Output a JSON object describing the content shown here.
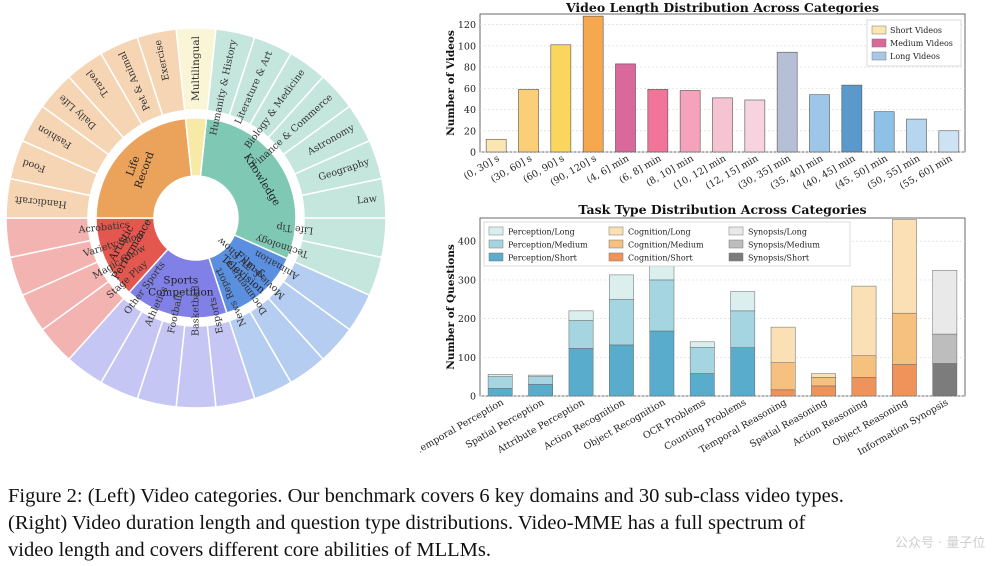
{
  "sunburst": {
    "inner": [
      {
        "label": "Knowledge",
        "color": "#7fc8b4",
        "items": [
          "Humanity & History",
          "Literature & Art",
          "Biology & Medicine",
          "Finance & Commerce",
          "Astronomy",
          "Geography",
          "Law",
          "Life Tip",
          "Technology"
        ]
      },
      {
        "label": "Film & Television",
        "color": "#5b8fe0",
        "items": [
          "Animation",
          "Movie & TV Show",
          "Documentary",
          "News Report"
        ]
      },
      {
        "label": "Sports Competition",
        "color": "#8080e6",
        "items": [
          "Esports",
          "Basketball",
          "Football",
          "Athletics",
          "Other Sports"
        ]
      },
      {
        "label": "Artistic Performance",
        "color": "#e4574f",
        "items": [
          "Stage Play",
          "Magic Show",
          "Variety Show",
          "Acrobatics"
        ]
      },
      {
        "label": "Life Record",
        "color": "#eba25a",
        "items": [
          "Handicraft",
          "Food",
          "Fashion",
          "Daily Life",
          "Travel",
          "Pet & Animal",
          "Exercise"
        ]
      },
      {
        "label": "Multilingual",
        "color": "#f7e9a6",
        "items": [
          "Multilingual"
        ]
      }
    ]
  },
  "chart_data": [
    {
      "type": "bar",
      "title": "Video Length Distribution Across Categories",
      "xlabel": "",
      "ylabel": "Number of Videos",
      "ylim": [
        0,
        130
      ],
      "yticks": [
        0,
        20,
        40,
        60,
        80,
        100,
        120
      ],
      "categories": [
        "(0, 30] s",
        "(30, 60] s",
        "(60, 90] s",
        "(90, 120] s",
        "(4, 6] min",
        "(6, 8] min",
        "(8, 10] min",
        "(10, 12] min",
        "(12, 15] min",
        "(30, 35] min",
        "(35, 40] min",
        "(40, 45] min",
        "(45, 50] min",
        "(50, 55] min",
        "(55, 60] min"
      ],
      "values": [
        12,
        59,
        101,
        128,
        83,
        59,
        58,
        51,
        49,
        94,
        54,
        63,
        38,
        31,
        20
      ],
      "colors": [
        "#fbe6b2",
        "#fbcf78",
        "#fbd65e",
        "#f5a84d",
        "#d9699b",
        "#f2749b",
        "#f5a3bd",
        "#f6c3d3",
        "#f6d3de",
        "#b5bfd6",
        "#9ec6e8",
        "#5b98cc",
        "#8dc1e6",
        "#b6d5ee",
        "#cde2f3"
      ],
      "legend": {
        "placement": "top-right",
        "entries": [
          {
            "name": "Short Videos",
            "color": "#fbe6b2"
          },
          {
            "name": "Medium Videos",
            "color": "#d9699b"
          },
          {
            "name": "Long Videos",
            "color": "#a9c8e8"
          }
        ]
      }
    },
    {
      "type": "bar",
      "stacked": true,
      "title": "Task Type Distribution Across Categories",
      "xlabel": "",
      "ylabel": "Number of Questions",
      "ylim": [
        0,
        460
      ],
      "yticks": [
        0,
        100,
        200,
        300,
        400
      ],
      "categories": [
        "Temporal Perception",
        "Spatial Perception",
        "Attribute Perception",
        "Action Recognition",
        "Object Recognition",
        "OCR Problems",
        "Counting Problems",
        "Temporal Reasoning",
        "Spatial Reasoning",
        "Action Reasoning",
        "Object Reasoning",
        "Information Synopsis"
      ],
      "series": [
        {
          "name": "Perception/Short",
          "group": "Perception",
          "level": "Short",
          "color": "#5aaccc",
          "values": [
            20,
            30,
            123,
            132,
            168,
            58,
            125,
            0,
            0,
            0,
            0,
            0
          ]
        },
        {
          "name": "Perception/Medium",
          "group": "Perception",
          "level": "Medium",
          "color": "#a6d5e2",
          "values": [
            30,
            20,
            72,
            118,
            132,
            68,
            95,
            0,
            0,
            0,
            0,
            0
          ]
        },
        {
          "name": "Perception/Long",
          "group": "Perception",
          "level": "Long",
          "color": "#dcefef",
          "values": [
            6,
            4,
            25,
            63,
            50,
            14,
            50,
            0,
            0,
            0,
            0,
            0
          ]
        },
        {
          "name": "Cognition/Short",
          "group": "Cognition",
          "level": "Short",
          "color": "#f0935a",
          "values": [
            0,
            0,
            0,
            0,
            0,
            0,
            0,
            16,
            26,
            48,
            82,
            0
          ]
        },
        {
          "name": "Cognition/Medium",
          "group": "Cognition",
          "level": "Medium",
          "color": "#f6c07f",
          "values": [
            0,
            0,
            0,
            0,
            0,
            0,
            0,
            70,
            22,
            56,
            132,
            0
          ]
        },
        {
          "name": "Cognition/Long",
          "group": "Cognition",
          "level": "Long",
          "color": "#fae0b4",
          "values": [
            0,
            0,
            0,
            0,
            0,
            0,
            0,
            92,
            10,
            180,
            242,
            0
          ]
        },
        {
          "name": "Synopsis/Short",
          "group": "Synopsis",
          "level": "Short",
          "color": "#7c7c7c",
          "values": [
            0,
            0,
            0,
            0,
            0,
            0,
            0,
            0,
            0,
            0,
            0,
            84
          ]
        },
        {
          "name": "Synopsis/Medium",
          "group": "Synopsis",
          "level": "Medium",
          "color": "#bdbdbd",
          "values": [
            0,
            0,
            0,
            0,
            0,
            0,
            0,
            0,
            0,
            0,
            0,
            76
          ]
        },
        {
          "name": "Synopsis/Long",
          "group": "Synopsis",
          "level": "Long",
          "color": "#e9e9e9",
          "values": [
            0,
            0,
            0,
            0,
            0,
            0,
            0,
            0,
            0,
            0,
            0,
            165
          ]
        }
      ],
      "legend": {
        "placement": "top",
        "entries": [
          "Perception/Long",
          "Cognition/Long",
          "Synopsis/Long",
          "Perception/Medium",
          "Cognition/Medium",
          "Synopsis/Medium",
          "Perception/Short",
          "Cognition/Short",
          "Synopsis/Short"
        ]
      }
    }
  ],
  "caption": {
    "lines": [
      "Figure 2: (Left) Video categories. Our benchmark covers 6 key domains and 30 sub-class video types.",
      "(Right) Video duration length and question type distributions. Video-MME has a full spectrum of",
      "video length and covers different core abilities of MLLMs."
    ]
  },
  "watermark": "公众号 · 量子位"
}
